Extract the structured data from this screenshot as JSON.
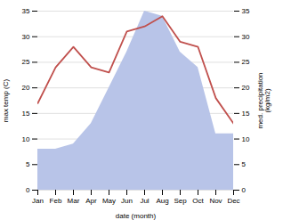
{
  "chart_data": {
    "type": "line",
    "xlabel": "date (month)",
    "ylabel": "max temp (C)",
    "y2label": "med. precipitation\n(kg/m2)",
    "categories": [
      "Jan",
      "Feb",
      "Mar",
      "Apr",
      "May",
      "Jun",
      "Jul",
      "Aug",
      "Sep",
      "Oct",
      "Nov",
      "Dec"
    ],
    "series": [
      {
        "type": "area",
        "axis": "y2",
        "color": "#b8c4e8",
        "values": [
          8,
          8,
          9,
          13,
          20,
          27,
          35,
          34,
          27,
          24,
          11,
          11
        ]
      },
      {
        "type": "line",
        "color": "#c0504d",
        "values": [
          17,
          24,
          28,
          24,
          23,
          31,
          32,
          34,
          29,
          28,
          18,
          13
        ]
      }
    ],
    "ylim": [
      0,
      35
    ],
    "yticks": [
      0,
      5,
      10,
      15,
      20,
      25,
      30,
      35
    ],
    "y2lim": [
      0,
      35
    ],
    "y2ticks": [
      0,
      5,
      10,
      15,
      20,
      25,
      30,
      35
    ],
    "grid": true
  }
}
